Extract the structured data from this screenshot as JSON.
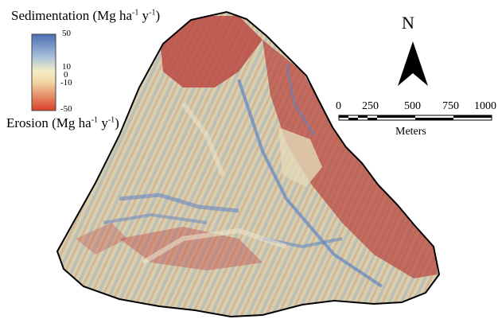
{
  "legend": {
    "title_text": "Sedimentation (Mg ha",
    "title_sup1": "-1",
    "title_mid": " y",
    "title_sup2": "-1",
    "title_end": ")",
    "sub_text": "Erosion (Mg ha",
    "sub_sup1": "-1",
    "sub_mid": " y",
    "sub_sup2": "-1",
    "sub_end": ")",
    "ticks": [
      "50",
      "10",
      "0",
      "-10",
      "-50"
    ],
    "colors": {
      "top": "#4a6fb5",
      "upper": "#a9c1d9",
      "mid": "#f3ecc6",
      "lower": "#e9a07a",
      "bottom": "#d9402a"
    }
  },
  "north_arrow": {
    "label": "N"
  },
  "scale_bar": {
    "ticks": [
      "0",
      "250",
      "500",
      "750",
      "1000"
    ],
    "unit": "Meters"
  },
  "map": {
    "colors": {
      "erosion": "#c0504d",
      "deposition": "#6d8fc7",
      "stable": "#d9cfae",
      "outline": "#000000"
    }
  }
}
